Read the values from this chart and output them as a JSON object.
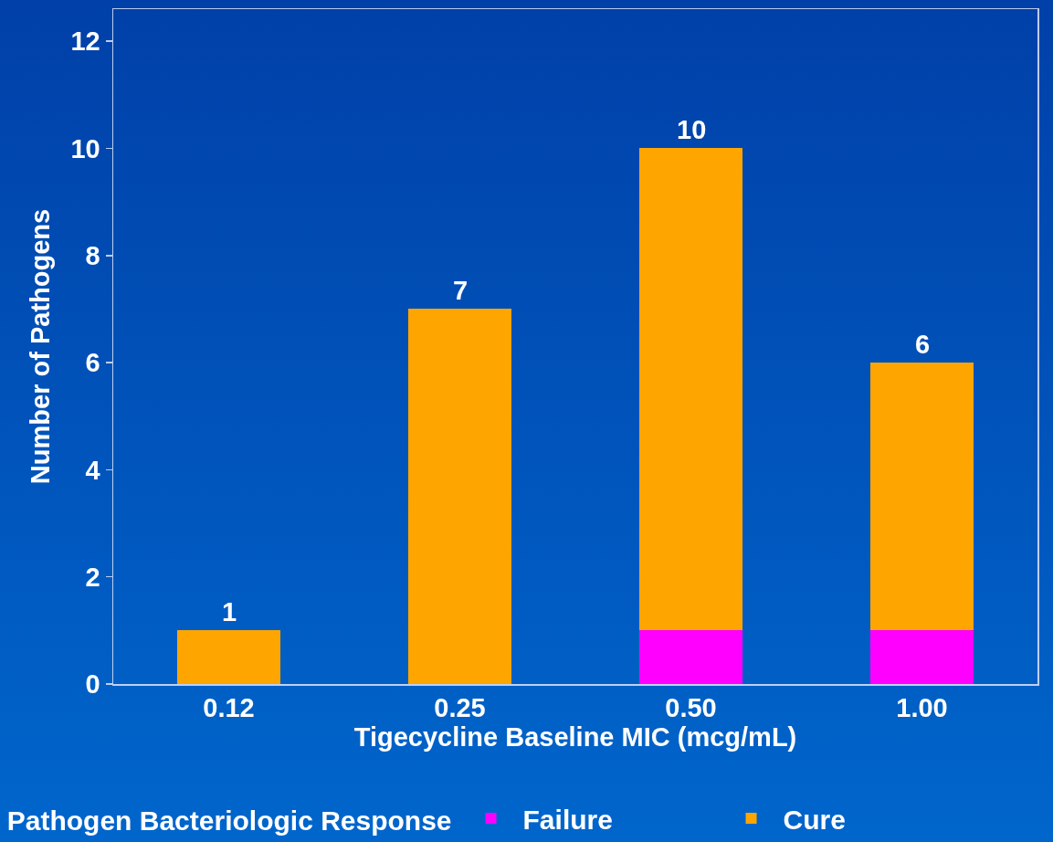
{
  "chart_data": {
    "type": "bar",
    "stacked": true,
    "categories": [
      "0.12",
      "0.25",
      "0.50",
      "1.00"
    ],
    "series": [
      {
        "name": "Failure",
        "color": "#ff00ff",
        "values": [
          0,
          0,
          1,
          1
        ]
      },
      {
        "name": "Cure",
        "color": "#ffa500",
        "values": [
          1,
          7,
          9,
          5
        ]
      }
    ],
    "totals": [
      "1",
      "7",
      "10",
      "6"
    ],
    "xlabel": "Tigecycline Baseline MIC (mcg/mL)",
    "ylabel": "Number of Pathogens",
    "ylim": [
      0,
      12.6
    ],
    "yticks": [
      0,
      2,
      4,
      6,
      8,
      10,
      12
    ],
    "grid": false,
    "legend": "bottom",
    "legend_title": "Pathogen Bacteriologic Response"
  }
}
